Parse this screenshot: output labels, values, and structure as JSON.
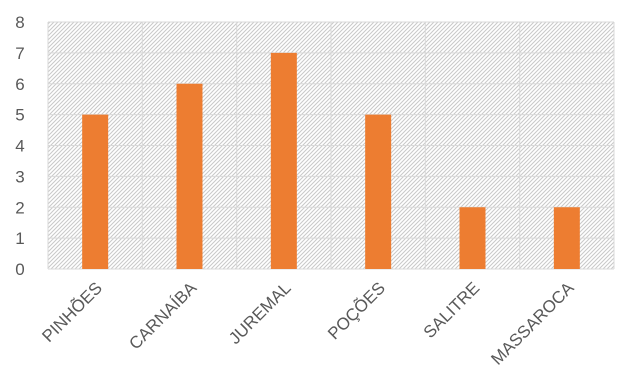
{
  "chart_data": {
    "type": "bar",
    "categories": [
      "PINHÕES",
      "CARNAÍBA",
      "JUREMAL",
      "POÇÕES",
      "SALITRE",
      "MASSAROCA"
    ],
    "values": [
      5,
      6,
      7,
      5,
      2,
      2
    ],
    "yticks": [
      "0",
      "1",
      "2",
      "3",
      "4",
      "5",
      "6",
      "7",
      "8"
    ],
    "ylim": [
      0,
      8
    ],
    "grid": true,
    "legend": "none",
    "bar_color": "#ED7D31",
    "plot_background": "hatched gray"
  }
}
